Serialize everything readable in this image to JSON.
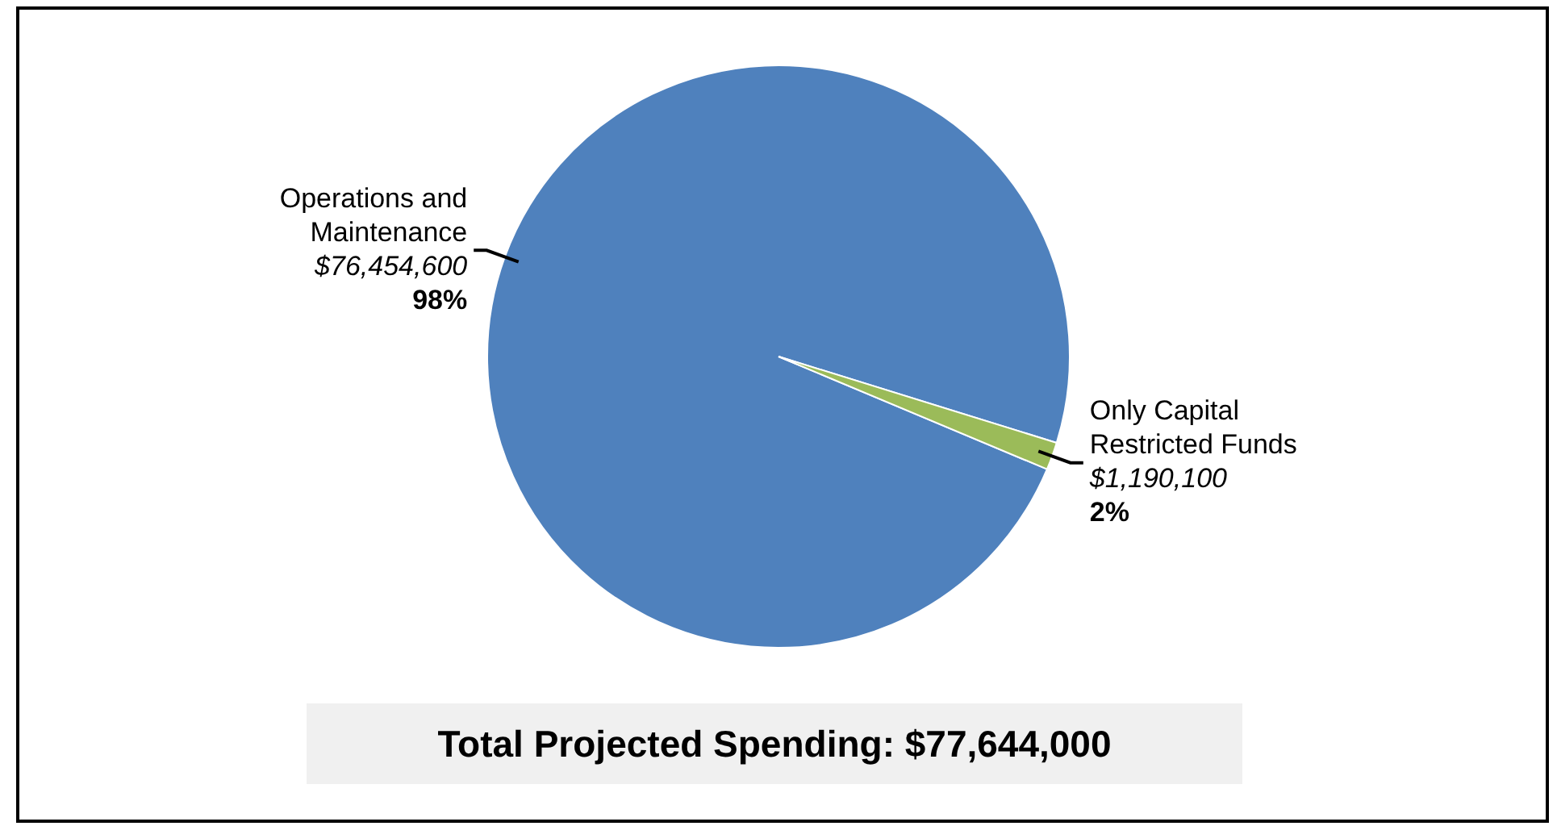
{
  "chart_data": {
    "type": "pie",
    "title": "Total Projected Spending: $77,644,000",
    "categories": [
      "Operations and Maintenance",
      "Only Capital Restricted Funds"
    ],
    "values": [
      76454600,
      1190100
    ],
    "colors": [
      "#4f81bd",
      "#9bbb59"
    ],
    "value_labels": [
      "$76,454,600\n98%",
      "$1,190,100\n2%"
    ],
    "legend": false
  }
}
